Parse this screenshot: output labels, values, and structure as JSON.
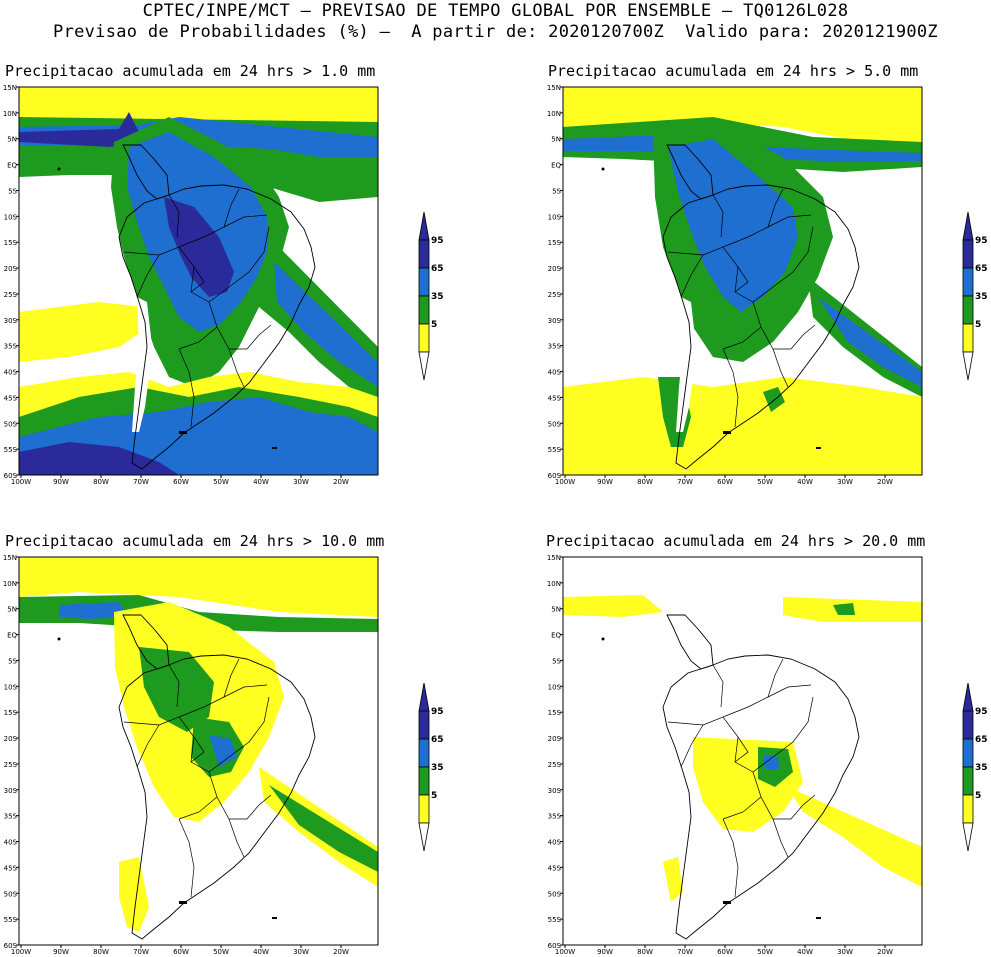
{
  "header": {
    "line1": "CPTEC/INPE/MCT – PREVISAO DE TEMPO GLOBAL POR ENSEMBLE – TQ0126L028",
    "line2": "Previsao de Probabilidades (%) –  A partir de: 2020120700Z  Valido para: 2020121900Z"
  },
  "panels": [
    {
      "title": "Precipitacao acumulada em 24 hrs > 1.0 mm"
    },
    {
      "title": "Precipitacao acumulada em 24 hrs > 5.0 mm"
    },
    {
      "title": "Precipitacao acumulada em 24 hrs > 10.0 mm"
    },
    {
      "title": "Precipitacao acumulada em 24 hrs > 20.0 mm"
    }
  ],
  "lat_labels": [
    "15N",
    "10N",
    "5N",
    "EQ",
    "5S",
    "10S",
    "15S",
    "20S",
    "25S",
    "30S",
    "35S",
    "40S",
    "45S",
    "50S",
    "55S",
    "60S"
  ],
  "lon_labels": [
    "100W",
    "90W",
    "80W",
    "70W",
    "60W",
    "50W",
    "40W",
    "30W",
    "20W"
  ],
  "legend": {
    "labels": [
      "95",
      "65",
      "35",
      "5"
    ],
    "colors": {
      "c95": "#2a2a9a",
      "c65": "#1e6fd0",
      "c35": "#1e9a1e",
      "c5": "#ffff22"
    }
  }
}
